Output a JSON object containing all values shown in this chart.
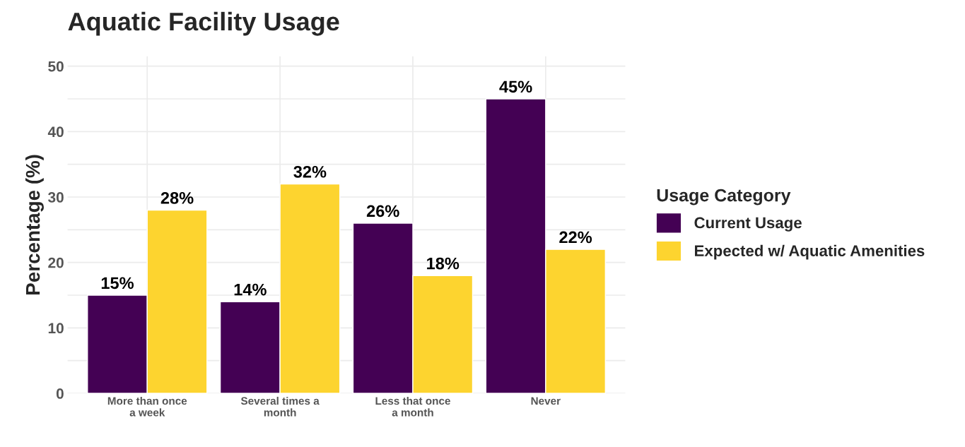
{
  "chart_data": {
    "type": "bar",
    "title": "Aquatic Facility Usage",
    "ylabel": "Percentage (%)",
    "legend_title": "Usage Category",
    "categories": [
      "More than once\na week",
      "Several times a\nmonth",
      "Less that once\na month",
      "Never"
    ],
    "series": [
      {
        "name": "Current Usage",
        "color": "#440154",
        "values": [
          15,
          14,
          26,
          45
        ],
        "value_labels": [
          "15%",
          "14%",
          "26%",
          "45%"
        ]
      },
      {
        "name": "Expected w/ Aquatic Amenities",
        "color": "#fdd42f",
        "values": [
          28,
          32,
          18,
          22
        ],
        "value_labels": [
          "28%",
          "32%",
          "18%",
          "22%"
        ]
      }
    ],
    "ylim": [
      0,
      51.5
    ],
    "yticks": [
      0,
      {
        "value": 5,
        "label": null
      },
      10,
      {
        "value": 15,
        "label": null
      },
      20,
      {
        "value": 25,
        "label": null
      },
      30,
      {
        "value": 35,
        "label": null
      },
      40,
      {
        "value": 45,
        "label": null
      },
      50
    ],
    "grid": true,
    "legend": "right"
  }
}
